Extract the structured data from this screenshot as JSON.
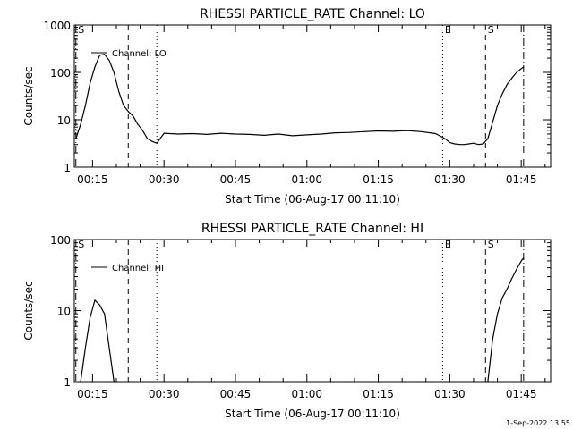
{
  "chart_data": [
    {
      "type": "line",
      "title": "RHESSI PARTICLE_RATE Channel: LO",
      "xlabel": "Start Time (06-Aug-17 00:11:10)",
      "ylabel": "Counts/sec",
      "yscale": "log",
      "ylim": [
        1,
        1000
      ],
      "xlim_minutes": [
        11.17,
        111.17
      ],
      "x_ticks": [
        {
          "label": "00:15",
          "min": 15
        },
        {
          "label": "00:30",
          "min": 30
        },
        {
          "label": "00:45",
          "min": 45
        },
        {
          "label": "01:00",
          "min": 60
        },
        {
          "label": "01:15",
          "min": 75
        },
        {
          "label": "01:30",
          "min": 90
        },
        {
          "label": "01:45",
          "min": 105
        }
      ],
      "y_ticks": [
        {
          "label": "1",
          "v": 1
        },
        {
          "label": "10",
          "v": 10
        },
        {
          "label": "100",
          "v": 100
        },
        {
          "label": "1000",
          "v": 1000
        }
      ],
      "legend": "Channel: LO",
      "markers": [
        {
          "label": "S",
          "min": 11.5,
          "style": "dashdot"
        },
        {
          "label": "",
          "min": 22.5,
          "style": "dash"
        },
        {
          "label": "",
          "min": 28.5,
          "style": "dot"
        },
        {
          "label": "E",
          "min": 88.5,
          "style": "dot"
        },
        {
          "label": "S",
          "min": 97.5,
          "style": "dash"
        },
        {
          "label": "",
          "min": 105.5,
          "style": "dashdot"
        }
      ],
      "series": [
        {
          "x": [
            11.5,
            12.5,
            13.5,
            14.5,
            15.5,
            16.5,
            17.5,
            18.5,
            19.5,
            20.5,
            21.5,
            22.5,
            23.5,
            24.5,
            25.5,
            26.5,
            27.5,
            28.5,
            30,
            33,
            36,
            39,
            42,
            45,
            48,
            51,
            54,
            57,
            60,
            63,
            66,
            69,
            72,
            75,
            78,
            81,
            84,
            87,
            89,
            90,
            91,
            92,
            93,
            94,
            95,
            96,
            97,
            98,
            99,
            100,
            101,
            102,
            103,
            104,
            105,
            105.5
          ],
          "y": [
            4,
            8,
            20,
            60,
            130,
            230,
            240,
            180,
            100,
            40,
            20,
            15,
            12,
            8,
            6,
            4,
            3.5,
            3.2,
            5.2,
            5,
            5.1,
            4.9,
            5.2,
            5,
            4.9,
            4.7,
            5,
            4.6,
            4.8,
            5,
            5.3,
            5.4,
            5.6,
            5.8,
            5.7,
            5.9,
            5.6,
            5.1,
            4,
            3.3,
            3.1,
            3,
            3,
            3.1,
            3.2,
            3,
            3.1,
            4,
            9,
            20,
            35,
            55,
            75,
            100,
            120,
            130
          ]
        }
      ]
    },
    {
      "type": "line",
      "title": "RHESSI PARTICLE_RATE Channel: HI",
      "xlabel": "Start Time (06-Aug-17 00:11:10)",
      "ylabel": "Counts/sec",
      "yscale": "log",
      "ylim": [
        1,
        100
      ],
      "xlim_minutes": [
        11.17,
        111.17
      ],
      "x_ticks": [
        {
          "label": "00:15",
          "min": 15
        },
        {
          "label": "00:30",
          "min": 30
        },
        {
          "label": "00:45",
          "min": 45
        },
        {
          "label": "01:00",
          "min": 60
        },
        {
          "label": "01:15",
          "min": 75
        },
        {
          "label": "01:30",
          "min": 90
        },
        {
          "label": "01:45",
          "min": 105
        }
      ],
      "y_ticks": [
        {
          "label": "1",
          "v": 1
        },
        {
          "label": "10",
          "v": 10
        },
        {
          "label": "100",
          "v": 100
        }
      ],
      "legend": "Channel: HI",
      "markers": [
        {
          "label": "S",
          "min": 11.5,
          "style": "dashdot"
        },
        {
          "label": "",
          "min": 22.5,
          "style": "dash"
        },
        {
          "label": "",
          "min": 28.5,
          "style": "dot"
        },
        {
          "label": "E",
          "min": 88.5,
          "style": "dot"
        },
        {
          "label": "S",
          "min": 97.5,
          "style": "dash"
        },
        {
          "label": "",
          "min": 105.5,
          "style": "dashdot"
        }
      ],
      "series": [
        {
          "x": [
            12.5,
            13.5,
            14.5,
            15.5,
            16.5,
            17.5,
            18.5,
            19.5
          ],
          "y": [
            1,
            3,
            8,
            14,
            12,
            9,
            3,
            1
          ]
        },
        {
          "x": [
            98,
            99,
            100,
            101,
            102,
            103,
            104,
            105,
            105.5
          ],
          "y": [
            1,
            4,
            9,
            15,
            20,
            28,
            38,
            50,
            55
          ]
        }
      ]
    }
  ],
  "timestamp": "1-Sep-2022 13:55"
}
